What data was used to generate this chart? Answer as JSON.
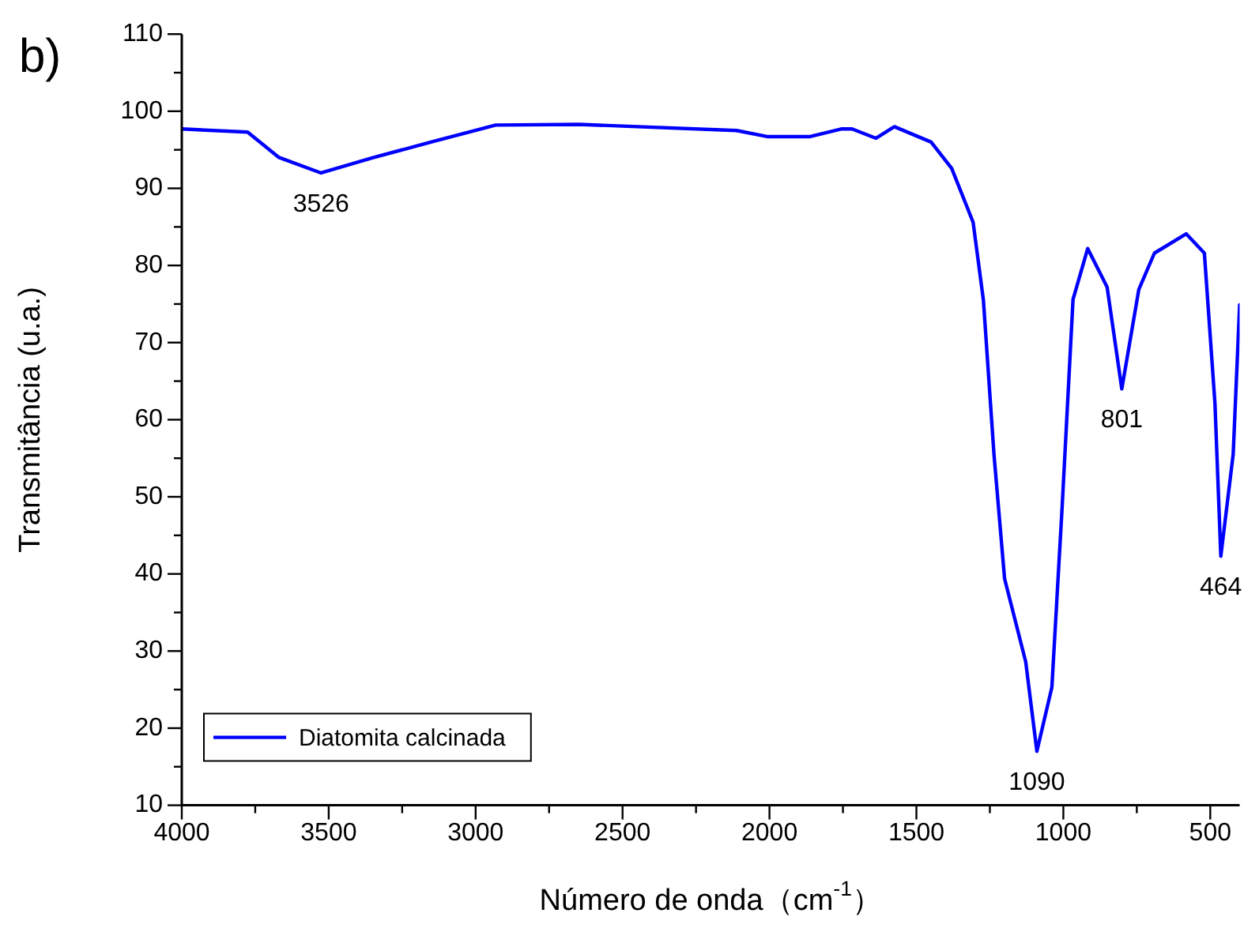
{
  "chart_data": {
    "type": "line",
    "xlabel": "Número de onda（cm$^{-1}$）",
    "ylabel": "Transmitância (u.a.)",
    "xlim": [
      4000,
      400
    ],
    "ylim": [
      10,
      110
    ],
    "xticks": [
      4000,
      {
        "value": 3750,
        "label": null
      },
      3500,
      {
        "value": 3250,
        "label": null
      },
      3000,
      {
        "value": 2750,
        "label": null
      },
      2500,
      {
        "value": 2250,
        "label": null
      },
      2000,
      {
        "value": 1750,
        "label": null
      },
      1500,
      {
        "value": 1250,
        "label": null
      },
      1000,
      {
        "value": 750,
        "label": null
      },
      500
    ],
    "yticks": [
      10,
      {
        "value": 15,
        "label": null
      },
      20,
      {
        "value": 25,
        "label": null
      },
      30,
      {
        "value": 35,
        "label": null
      },
      40,
      {
        "value": 45,
        "label": null
      },
      50,
      {
        "value": 55,
        "label": null
      },
      60,
      {
        "value": 65,
        "label": null
      },
      70,
      {
        "value": 75,
        "label": null
      },
      80,
      {
        "value": 85,
        "label": null
      },
      90,
      {
        "value": 95,
        "label": null
      },
      100,
      {
        "value": 105,
        "label": null
      },
      110
    ],
    "grid": false,
    "legend": "bottom left",
    "marker": "none",
    "line_style": "solid",
    "x": [
      4000,
      3776,
      3669,
      3526,
      3347,
      3152,
      2932,
      2649,
      2112,
      2005,
      1864,
      1756,
      1719,
      1638,
      1575,
      1450,
      1380,
      1307,
      1272,
      1236,
      1200,
      1128,
      1090,
      1039,
      1004,
      967,
      917,
      851,
      801,
      743,
      690,
      582,
      520,
      484,
      464,
      422,
      400
    ],
    "series": [
      {
        "name": "Diatomita calcinada",
        "color": "#0000ff",
        "values": [
          97.7,
          97.3,
          94.0,
          92.0,
          94.0,
          96.0,
          98.2,
          98.3,
          97.5,
          96.7,
          96.7,
          97.7,
          97.7,
          96.5,
          98.0,
          96.0,
          92.6,
          85.6,
          75.5,
          55.5,
          39.4,
          28.6,
          17.0,
          25.3,
          48.7,
          75.6,
          82.2,
          77.2,
          64.0,
          76.9,
          81.6,
          84.1,
          81.6,
          62.1,
          42.3,
          55.5,
          74.9
        ]
      }
    ],
    "annotations": [
      "b)",
      {
        "text": "3526",
        "x": 3526,
        "y": 92
      },
      {
        "text": "1090",
        "x": 1090,
        "y": 17
      },
      {
        "text": "801",
        "x": 801,
        "y": 64
      },
      {
        "text": "464",
        "x": 464,
        "y": 42.3
      }
    ]
  }
}
